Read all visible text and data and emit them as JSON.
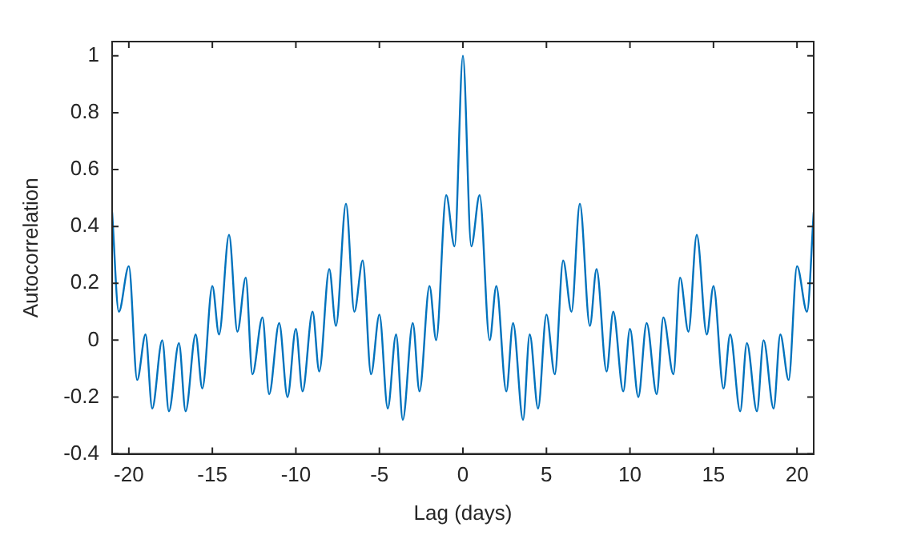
{
  "chart_data": {
    "type": "line",
    "xlabel": "Lag (days)",
    "ylabel": "Autocorrelation",
    "xlim": [
      -21,
      21
    ],
    "xticks": [
      -20,
      -15,
      -10,
      -5,
      0,
      5,
      10,
      15,
      20
    ],
    "ylim": [
      -0.4,
      1.05
    ],
    "yticks": [
      -0.4,
      -0.2,
      0,
      0.2,
      0.4,
      0.6,
      0.8,
      1
    ],
    "grid": false,
    "legend": false,
    "marker": "none",
    "line_style": "solid",
    "series": [
      {
        "color": "#0072bd",
        "x": [
          -21,
          -20.6,
          -20,
          -19.5,
          -19,
          -18.6,
          -18,
          -17.6,
          -17,
          -16.6,
          -16,
          -15.6,
          -15,
          -14.6,
          -14,
          -13.5,
          -13,
          -12.6,
          -12,
          -11.6,
          -11,
          -10.5,
          -10,
          -9.6,
          -9,
          -8.6,
          -8,
          -7.6,
          -7,
          -6.5,
          -6,
          -5.5,
          -5,
          -4.5,
          -4,
          -3.6,
          -3,
          -2.6,
          -2,
          -1.6,
          -1,
          -0.5,
          0,
          0.5,
          1,
          1.6,
          2,
          2.6,
          3,
          3.6,
          4,
          4.5,
          5,
          5.5,
          6,
          6.5,
          7,
          7.6,
          8,
          8.6,
          9,
          9.6,
          10,
          10.5,
          11,
          11.6,
          12,
          12.6,
          13,
          13.5,
          14,
          14.6,
          15,
          15.6,
          16,
          16.6,
          17,
          17.6,
          18,
          18.6,
          19,
          19.5,
          20,
          20.6,
          21
        ],
        "values": [
          0.45,
          0.1,
          0.26,
          -0.14,
          0.02,
          -0.24,
          0.0,
          -0.25,
          -0.01,
          -0.25,
          0.02,
          -0.17,
          0.19,
          0.02,
          0.37,
          0.03,
          0.22,
          -0.12,
          0.08,
          -0.19,
          0.06,
          -0.2,
          0.04,
          -0.18,
          0.1,
          -0.11,
          0.25,
          0.05,
          0.48,
          0.1,
          0.28,
          -0.12,
          0.09,
          -0.24,
          0.02,
          -0.28,
          0.06,
          -0.18,
          0.19,
          0.0,
          0.51,
          0.33,
          1.0,
          0.33,
          0.51,
          0.0,
          0.19,
          -0.18,
          0.06,
          -0.28,
          0.02,
          -0.24,
          0.09,
          -0.12,
          0.28,
          0.1,
          0.48,
          0.05,
          0.25,
          -0.11,
          0.1,
          -0.18,
          0.04,
          -0.2,
          0.06,
          -0.19,
          0.08,
          -0.12,
          0.22,
          0.03,
          0.37,
          0.02,
          0.19,
          -0.17,
          0.02,
          -0.25,
          -0.01,
          -0.25,
          0.0,
          -0.24,
          0.02,
          -0.14,
          0.26,
          0.1,
          0.45
        ]
      }
    ]
  }
}
